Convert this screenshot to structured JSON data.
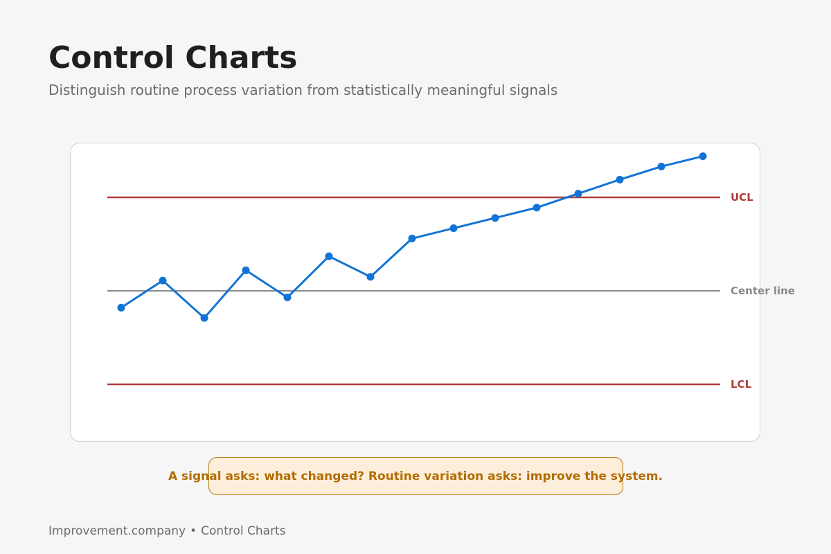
{
  "header": {
    "title": "Control Charts",
    "subtitle": "Distinguish routine process variation from statistically meaningful signals"
  },
  "chart_data": {
    "type": "line",
    "x": [
      1,
      2,
      3,
      4,
      5,
      6,
      7,
      8,
      9,
      10,
      11,
      12,
      13,
      14,
      15
    ],
    "series": [
      {
        "values": [
          -0.18,
          0.11,
          -0.29,
          0.22,
          -0.07,
          0.37,
          0.15,
          0.56,
          0.67,
          0.78,
          0.89,
          1.04,
          1.19,
          1.33,
          1.44
        ]
      }
    ],
    "reference_lines": [
      {
        "label": "UCL",
        "value": 1.0,
        "color": "#b23b3b"
      },
      {
        "label": "Center line",
        "value": 0.0,
        "color": "#8a8a8a"
      },
      {
        "label": "LCL",
        "value": -1.0,
        "color": "#b23b3b"
      }
    ],
    "series_color": "#1273d6",
    "grid": false,
    "axes_visible": false
  },
  "callout": {
    "text": "A signal asks: what changed? Routine variation asks: improve the system."
  },
  "footer": {
    "brand": "Improvement.company",
    "separator": "•",
    "section": "Control Charts"
  }
}
